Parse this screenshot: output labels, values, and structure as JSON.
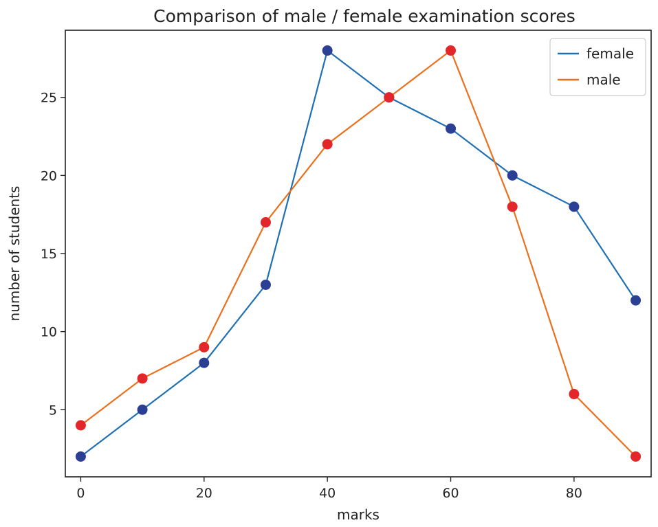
{
  "chart_data": {
    "type": "line",
    "title": "Comparison of male / female examination scores",
    "xlabel": "marks",
    "ylabel": "number of students",
    "x": [
      0,
      10,
      20,
      30,
      40,
      50,
      60,
      70,
      80,
      90
    ],
    "xlim": [
      -2.5,
      92.5
    ],
    "ylim": [
      0.7,
      29.3
    ],
    "x_ticks": [
      0,
      20,
      40,
      60,
      80
    ],
    "y_ticks": [
      5,
      10,
      15,
      20,
      25
    ],
    "grid": false,
    "legend_position": "top-right",
    "series": [
      {
        "name": "female",
        "values": [
          2,
          5,
          8,
          13,
          28,
          25,
          23,
          20,
          18,
          12
        ],
        "line_color": "#1f6fb4",
        "marker_color": "#2b3f95"
      },
      {
        "name": "male",
        "values": [
          4,
          7,
          9,
          17,
          22,
          25,
          28,
          18,
          6,
          2
        ],
        "line_color": "#ec6f1c",
        "marker_color": "#e3262a"
      }
    ]
  }
}
